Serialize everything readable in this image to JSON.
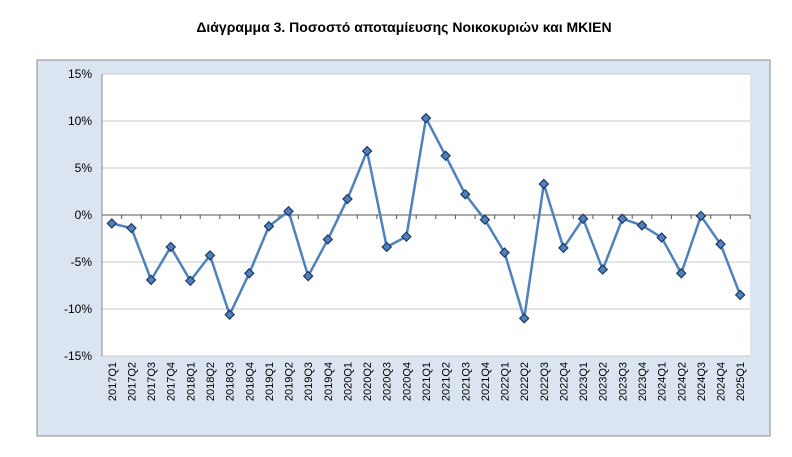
{
  "chart_data": {
    "type": "line",
    "title": "Διάγραμμα 3. Ποσοστό αποταμίευσης Νοικοκυριών και ΜΚΙΕΝ",
    "categories": [
      "2017Q1",
      "2017Q2",
      "2017Q3",
      "2017Q4",
      "2018Q1",
      "2018Q2",
      "2018Q3",
      "2018Q4",
      "2019Q1",
      "2019Q2",
      "2019Q3",
      "2019Q4",
      "2020Q1",
      "2020Q2",
      "2020Q3",
      "2020Q4",
      "2021Q1",
      "2021Q2",
      "2021Q3",
      "2021Q4",
      "2022Q1",
      "2022Q2",
      "2022Q3",
      "2022Q4",
      "2023Q1",
      "2023Q2",
      "2023Q3",
      "2023Q4",
      "2024Q1",
      "2024Q2",
      "2024Q3",
      "2024Q4",
      "2025Q1"
    ],
    "values": [
      -0.9,
      -1.4,
      -6.9,
      -3.4,
      -7.0,
      -4.3,
      -10.6,
      -6.2,
      -1.2,
      0.4,
      -6.5,
      -2.6,
      1.7,
      6.8,
      -3.4,
      -2.3,
      10.3,
      6.3,
      2.2,
      -0.5,
      -4.0,
      -11.0,
      3.3,
      -3.5,
      -0.4,
      -5.8,
      -0.4,
      -1.1,
      -2.4,
      -6.2,
      -0.1,
      -3.1,
      -8.5
    ],
    "color": "#4f81bd",
    "ylim": [
      -15,
      15
    ],
    "yticks": [
      {
        "value": -15,
        "label": "-15%"
      },
      {
        "value": -10,
        "label": "-10%"
      },
      {
        "value": -5,
        "label": "-5%"
      },
      {
        "value": 0,
        "label": "0%"
      },
      {
        "value": 5,
        "label": "5%"
      },
      {
        "value": 10,
        "label": "10%"
      },
      {
        "value": 15,
        "label": "15%"
      }
    ],
    "grid": true
  }
}
